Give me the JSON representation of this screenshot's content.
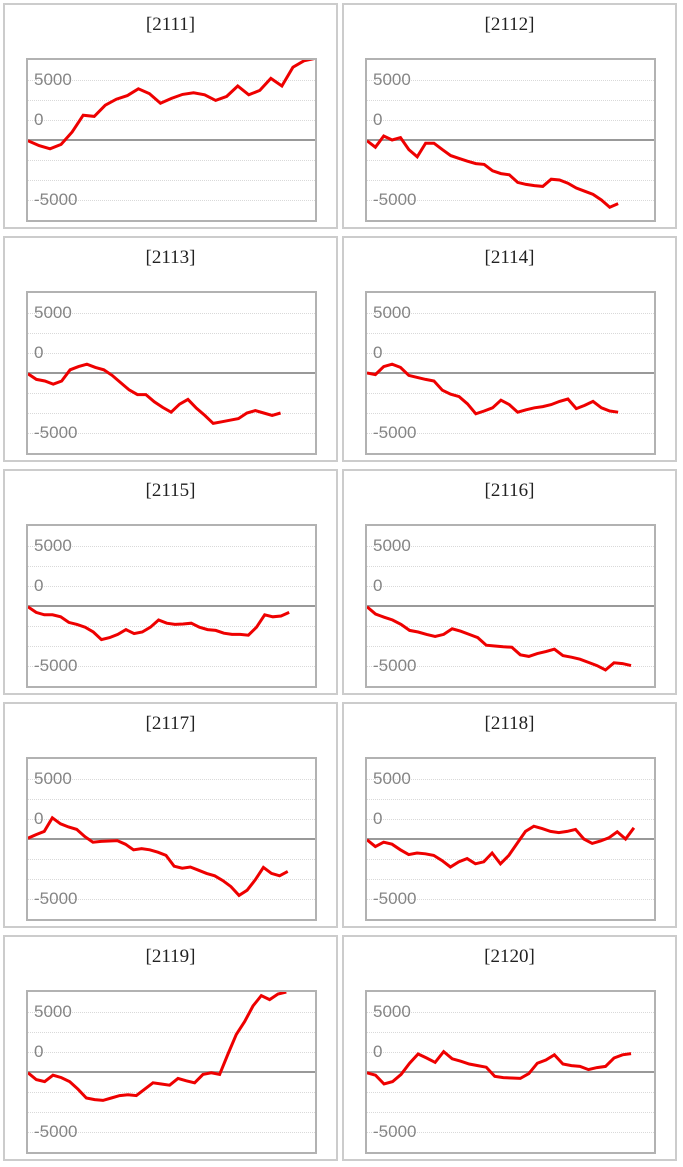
{
  "axis": {
    "tick_labels": [
      "5000",
      "0",
      "-5000"
    ],
    "ylim": [
      -10000,
      10000
    ],
    "gridline_interval": 2500,
    "zero_line_value": 0,
    "grid": "dotted"
  },
  "colors": {
    "line": "#ee0000",
    "zero_line": "#999999",
    "grid": "#d9d9d9",
    "plot_border": "#b2b2b2",
    "panel_border": "#cccccc",
    "tick_label": "#858585",
    "title": "#222222",
    "background": "#ffffff"
  },
  "chart_data": [
    {
      "type": "line",
      "title": "[2111]",
      "ylim": [
        -10000,
        10000
      ],
      "yticks": [
        5000,
        0,
        -5000
      ],
      "x_end_fraction": 1.0,
      "values": [
        -100,
        -700,
        -1100,
        -550,
        1000,
        3100,
        2950,
        4350,
        5100,
        5550,
        6400,
        5800,
        4600,
        5200,
        5700,
        5900,
        5650,
        4950,
        5450,
        6750,
        5650,
        6200,
        7700,
        6750,
        9100,
        9900,
        10200
      ]
    },
    {
      "type": "line",
      "title": "[2112]",
      "ylim": [
        -10000,
        10000
      ],
      "yticks": [
        5000,
        0,
        -5000
      ],
      "x_end_fraction": 0.875,
      "values": [
        -100,
        -900,
        500,
        0,
        300,
        -1200,
        -2100,
        -400,
        -400,
        -1200,
        -1950,
        -2300,
        -2650,
        -2950,
        -3050,
        -3850,
        -4200,
        -4350,
        -5300,
        -5550,
        -5700,
        -5800,
        -4900,
        -5000,
        -5400,
        -6000,
        -6400,
        -6800,
        -7500,
        -8400,
        -7950
      ]
    },
    {
      "type": "line",
      "title": "[2113]",
      "ylim": [
        -10000,
        10000
      ],
      "yticks": [
        5000,
        0,
        -5000
      ],
      "x_end_fraction": 0.88,
      "values": [
        -100,
        -800,
        -1000,
        -1400,
        -1000,
        400,
        800,
        1100,
        700,
        400,
        -300,
        -1200,
        -2100,
        -2700,
        -2700,
        -3600,
        -4300,
        -4900,
        -3900,
        -3300,
        -4400,
        -5300,
        -6300,
        -6100,
        -5900,
        -5700,
        -5000,
        -4700,
        -5000,
        -5300,
        -5000
      ]
    },
    {
      "type": "line",
      "title": "[2114]",
      "ylim": [
        -10000,
        10000
      ],
      "yticks": [
        5000,
        0,
        -5000
      ],
      "x_end_fraction": 0.875,
      "values": [
        0,
        -200,
        800,
        1100,
        700,
        -300,
        -550,
        -800,
        -1000,
        -2150,
        -2650,
        -2950,
        -3850,
        -5100,
        -4750,
        -4350,
        -3400,
        -3950,
        -4900,
        -4600,
        -4350,
        -4200,
        -3950,
        -3550,
        -3250,
        -4450,
        -4050,
        -3550,
        -4350,
        -4750,
        -4900
      ]
    },
    {
      "type": "line",
      "title": "[2115]",
      "ylim": [
        -10000,
        10000
      ],
      "yticks": [
        5000,
        0,
        -5000
      ],
      "x_end_fraction": 0.91,
      "values": [
        -100,
        -800,
        -1100,
        -1100,
        -1350,
        -2050,
        -2300,
        -2650,
        -3250,
        -4200,
        -3950,
        -3550,
        -2950,
        -3450,
        -3250,
        -2650,
        -1750,
        -2150,
        -2300,
        -2250,
        -2150,
        -2650,
        -2950,
        -3050,
        -3400,
        -3550,
        -3550,
        -3650,
        -2650,
        -1100,
        -1350,
        -1250,
        -800
      ]
    },
    {
      "type": "line",
      "title": "[2116]",
      "ylim": [
        -10000,
        10000
      ],
      "yticks": [
        5000,
        0,
        -5000
      ],
      "x_end_fraction": 0.92,
      "values": [
        -100,
        -1000,
        -1400,
        -1750,
        -2300,
        -3050,
        -3250,
        -3550,
        -3800,
        -3550,
        -2850,
        -3150,
        -3550,
        -3950,
        -4900,
        -5000,
        -5100,
        -5150,
        -6100,
        -6300,
        -5950,
        -5700,
        -5400,
        -6200,
        -6400,
        -6650,
        -7050,
        -7450,
        -8000,
        -7100,
        -7200,
        -7450
      ]
    },
    {
      "type": "line",
      "title": "[2117]",
      "ylim": [
        -10000,
        10000
      ],
      "yticks": [
        5000,
        0,
        -5000
      ],
      "x_end_fraction": 0.905,
      "values": [
        100,
        550,
        950,
        2650,
        1900,
        1500,
        1200,
        300,
        -400,
        -300,
        -250,
        -200,
        -650,
        -1350,
        -1200,
        -1350,
        -1650,
        -2050,
        -3400,
        -3650,
        -3500,
        -3900,
        -4300,
        -4600,
        -5200,
        -5950,
        -7050,
        -6400,
        -5100,
        -3550,
        -4300,
        -4600,
        -4050
      ]
    },
    {
      "type": "line",
      "title": "[2118]",
      "ylim": [
        -10000,
        10000
      ],
      "yticks": [
        5000,
        0,
        -5000
      ],
      "x_end_fraction": 0.93,
      "values": [
        -100,
        -950,
        -400,
        -650,
        -1350,
        -1950,
        -1750,
        -1850,
        -2050,
        -2700,
        -3500,
        -2850,
        -2450,
        -3100,
        -2850,
        -1750,
        -3100,
        -2050,
        -550,
        950,
        1600,
        1300,
        950,
        800,
        950,
        1200,
        0,
        -550,
        -250,
        150,
        900,
        0,
        1400
      ]
    },
    {
      "type": "line",
      "title": "[2119]",
      "ylim": [
        -10000,
        10000
      ],
      "yticks": [
        5000,
        0,
        -5000
      ],
      "x_end_fraction": 0.9,
      "values": [
        -100,
        -950,
        -1200,
        -400,
        -700,
        -1200,
        -2150,
        -3250,
        -3450,
        -3550,
        -3250,
        -2950,
        -2850,
        -2950,
        -2150,
        -1350,
        -1500,
        -1650,
        -800,
        -1100,
        -1350,
        -300,
        -100,
        -300,
        2250,
        4700,
        6300,
        8250,
        9550,
        9050,
        9750,
        10000
      ]
    },
    {
      "type": "line",
      "title": "[2120]",
      "ylim": [
        -10000,
        10000
      ],
      "yticks": [
        5000,
        0,
        -5000
      ],
      "x_end_fraction": 0.92,
      "values": [
        -100,
        -400,
        -1500,
        -1200,
        -300,
        1100,
        2250,
        1750,
        1200,
        2550,
        1650,
        1350,
        1000,
        800,
        600,
        -550,
        -700,
        -750,
        -800,
        -200,
        1100,
        1500,
        2150,
        1000,
        800,
        700,
        300,
        550,
        700,
        1750,
        2150,
        2300
      ]
    }
  ]
}
